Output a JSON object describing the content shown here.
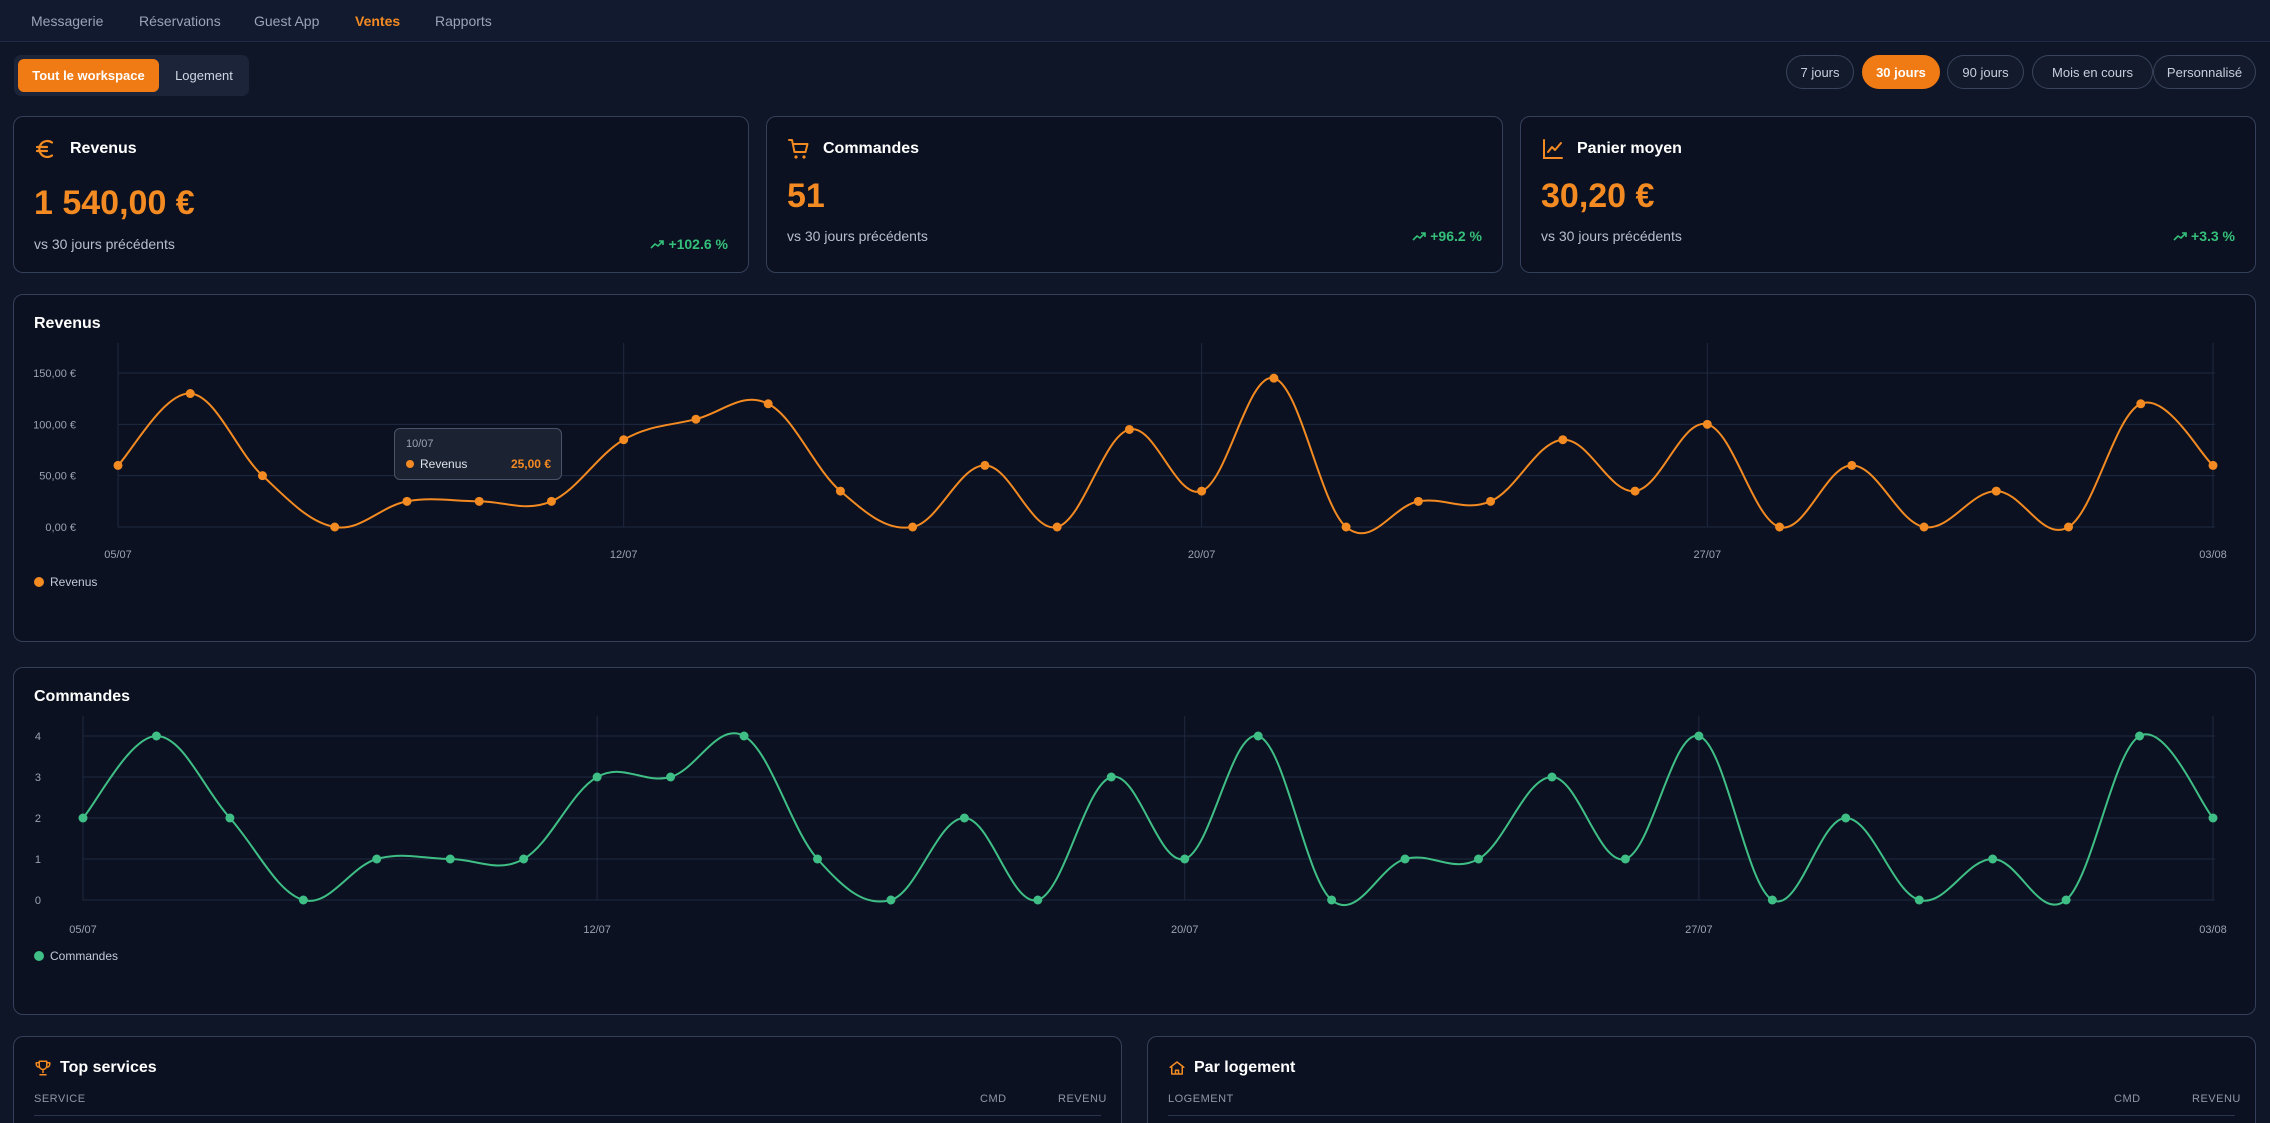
{
  "nav": {
    "items": [
      {
        "label": "Messagerie",
        "active": false
      },
      {
        "label": "Réservations",
        "active": false
      },
      {
        "label": "Guest App",
        "active": false
      },
      {
        "label": "Ventes",
        "active": true
      },
      {
        "label": "Rapports",
        "active": false
      }
    ]
  },
  "scope": {
    "options": [
      "Tout le workspace",
      "Logement"
    ],
    "selected": "Tout le workspace"
  },
  "ranges": {
    "options": [
      "7 jours",
      "30 jours",
      "90 jours",
      "Mois en cours",
      "Personnalisé"
    ],
    "selected": "30 jours"
  },
  "kpis": [
    {
      "title": "Revenus",
      "icon": "euro-icon",
      "value": "1 540,00 €",
      "sub": "vs 30 jours précédents",
      "change": "+102.6 %"
    },
    {
      "title": "Commandes",
      "icon": "cart-icon",
      "value": "51",
      "sub": "vs 30 jours précédents",
      "change": "+96.2 %"
    },
    {
      "title": "Panier moyen",
      "icon": "trend-chart-icon",
      "value": "30,20 €",
      "sub": "vs 30 jours précédents",
      "change": "+3.3 %"
    }
  ],
  "colors": {
    "accent": "#f38a22",
    "positive": "#34c07a",
    "orders_line": "#3fbf86"
  },
  "chart_data": [
    {
      "type": "line",
      "title": "Revenus",
      "x_ticks": [
        "05/07",
        "12/07",
        "20/07",
        "27/07",
        "03/08"
      ],
      "y_ticks": [
        "0,00 €",
        "50,00 €",
        "100,00 €",
        "150,00 €"
      ],
      "ylim": [
        0,
        150
      ],
      "series": [
        {
          "name": "Revenus",
          "color": "#f38a22",
          "values": [
            60,
            130,
            50,
            0,
            25,
            25,
            25,
            85,
            105,
            120,
            35,
            0,
            60,
            0,
            95,
            35,
            145,
            0,
            25,
            25,
            85,
            35,
            100,
            0,
            60,
            0,
            35,
            0,
            120,
            60
          ]
        }
      ],
      "tooltip": {
        "date": "10/07",
        "label": "Revenus",
        "value": "25,00 €"
      },
      "legend": "bottom-left",
      "grid": true
    },
    {
      "type": "line",
      "title": "Commandes",
      "x_ticks": [
        "05/07",
        "12/07",
        "20/07",
        "27/07",
        "03/08"
      ],
      "y_ticks": [
        "0",
        "1",
        "2",
        "3",
        "4"
      ],
      "ylim": [
        0,
        4
      ],
      "series": [
        {
          "name": "Commandes",
          "color": "#3fbf86",
          "values": [
            2,
            4,
            2,
            0,
            1,
            1,
            1,
            3,
            3,
            4,
            1,
            0,
            2,
            0,
            3,
            1,
            4,
            0,
            1,
            1,
            3,
            1,
            4,
            0,
            2,
            0,
            1,
            0,
            4,
            2
          ]
        }
      ],
      "legend": "bottom-left",
      "grid": true
    }
  ],
  "tables": [
    {
      "title": "Top services",
      "icon": "trophy-icon",
      "columns": [
        "SERVICE",
        "CMD",
        "REVENU"
      ]
    },
    {
      "title": "Par logement",
      "icon": "home-icon",
      "columns": [
        "LOGEMENT",
        "CMD",
        "REVENU"
      ]
    }
  ]
}
